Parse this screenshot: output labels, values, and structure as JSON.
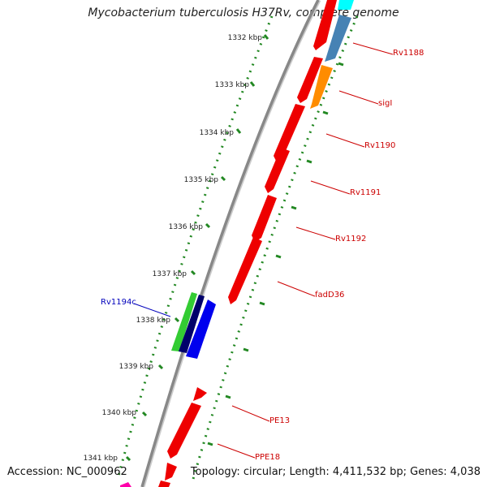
{
  "title": "Mycobacterium tuberculosis H37Rv, complete genome",
  "ticks": [
    {
      "label": "1332 kbp"
    },
    {
      "label": "1333 kbp"
    },
    {
      "label": "1334 kbp"
    },
    {
      "label": "1335 kbp"
    },
    {
      "label": "1336 kbp"
    },
    {
      "label": "1337 kbp"
    },
    {
      "label": "1338 kbp"
    },
    {
      "label": "1339 kbp"
    },
    {
      "label": "1340 kbp"
    },
    {
      "label": "1341 kbp"
    }
  ],
  "genes": [
    {
      "label": "Rv1188",
      "color": "#cc0000",
      "strand": "forward"
    },
    {
      "label": "sigI",
      "color": "#cc0000",
      "strand": "forward"
    },
    {
      "label": "Rv1190",
      "color": "#cc0000",
      "strand": "forward"
    },
    {
      "label": "Rv1191",
      "color": "#cc0000",
      "strand": "forward"
    },
    {
      "label": "Rv1192",
      "color": "#cc0000",
      "strand": "forward"
    },
    {
      "label": "fadD36",
      "color": "#cc0000",
      "strand": "forward"
    },
    {
      "label": "Rv1194c",
      "color": "#0000bb",
      "strand": "reverse"
    },
    {
      "label": "PE13",
      "color": "#cc0000",
      "strand": "forward"
    },
    {
      "label": "PPE18",
      "color": "#cc0000",
      "strand": "forward"
    }
  ],
  "footer": {
    "accession": "Accession: NC_000962",
    "summary": "Topology: circular; Length: 4,411,532 bp; Genes: 4,038"
  },
  "colors": {
    "cds": "#ee0000",
    "trna": "#2a3aa0",
    "reverse_gene": "#0000ee",
    "rrna_green": "#33cc33",
    "navy": "#00006b",
    "steelblue": "#4682b4",
    "orange": "#ff8c00",
    "cyan": "#00ffff",
    "magenta": "#ff00aa",
    "backbone": "#888888",
    "tick_dots": "#228822"
  }
}
